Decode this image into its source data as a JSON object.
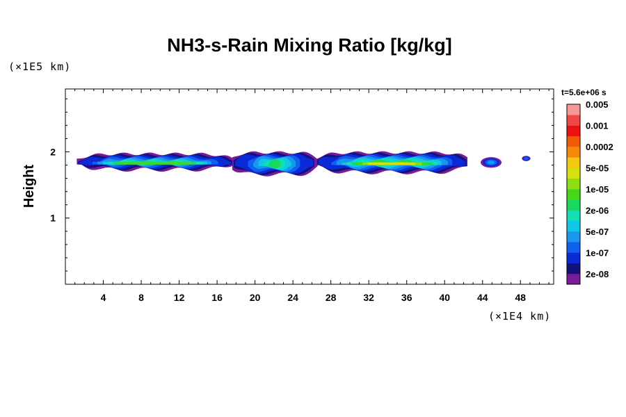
{
  "chart_data": {
    "type": "heatmap",
    "title": "NH3-s-Rain Mixing Ratio [kg/kg]",
    "ylabel": "Height",
    "y_unit": "(×1E5 km)",
    "x_unit": "(×1E4 km)",
    "time_label": "t=5.6e+06 s",
    "xlim": [
      0,
      51.5
    ],
    "ylim": [
      0,
      2.95
    ],
    "x_ticks": [
      4,
      8,
      12,
      16,
      20,
      24,
      28,
      32,
      36,
      40,
      44,
      48
    ],
    "x_tick_labels": [
      "4",
      "8",
      "12",
      "16",
      "20",
      "24",
      "28",
      "32",
      "36",
      "40",
      "44",
      "48"
    ],
    "y_ticks": [
      1,
      2
    ],
    "y_tick_labels": [
      "1",
      "2"
    ],
    "colorbar": {
      "colors": [
        "#7a1a9a",
        "#12127a",
        "#0a2ad8",
        "#1060f0",
        "#1a96ee",
        "#10c8e6",
        "#12dfb6",
        "#18d860",
        "#44d818",
        "#8ce012",
        "#d6e010",
        "#f5c812",
        "#f58a0a",
        "#f25a08",
        "#ee1010",
        "#f04848",
        "#f59898"
      ],
      "labels": [
        "2e-08",
        "1e-07",
        "5e-07",
        "2e-06",
        "1e-05",
        "5e-05",
        "0.0002",
        "0.001",
        "0.005"
      ],
      "label_level_index": [
        1,
        3,
        5,
        7,
        9,
        11,
        13,
        15,
        17
      ]
    },
    "cloud_regions": [
      {
        "name": "main-band-west",
        "x_range": [
          1.5,
          17.5
        ],
        "y_range": [
          1.7,
          2.0
        ],
        "max_level": 9
      },
      {
        "name": "main-band-center",
        "x_range": [
          17.5,
          26.5
        ],
        "y_range": [
          1.65,
          2.0
        ],
        "max_level": 11
      },
      {
        "name": "main-band-east",
        "x_range": [
          26.5,
          42.5
        ],
        "y_range": [
          1.7,
          2.0
        ],
        "max_level": 11
      },
      {
        "name": "cell-44",
        "x_range": [
          43.8,
          46.0
        ],
        "y_range": [
          1.75,
          1.93
        ],
        "max_level": 4
      },
      {
        "name": "cell-48",
        "x_range": [
          48.2,
          49.0
        ],
        "y_range": [
          1.86,
          1.94
        ],
        "max_level": 3
      }
    ]
  }
}
